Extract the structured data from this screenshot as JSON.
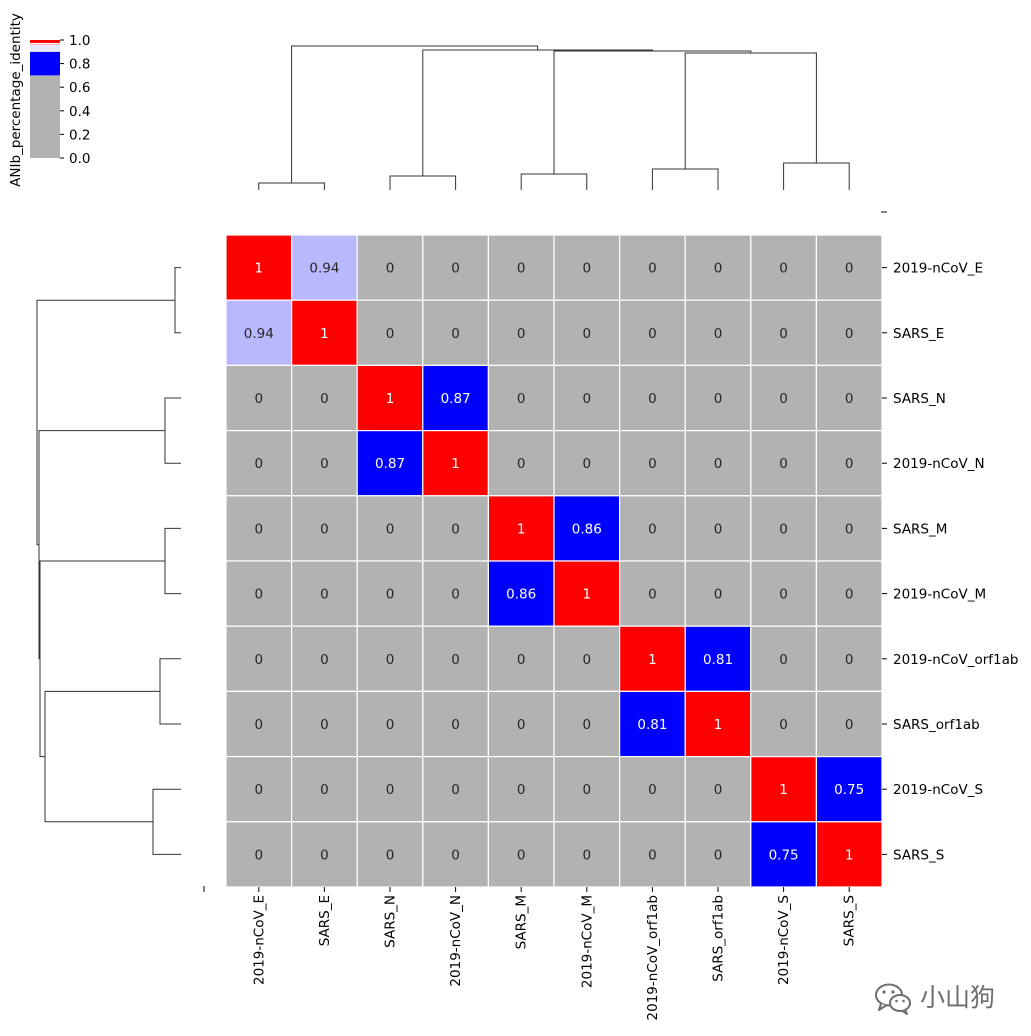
{
  "chart_data": {
    "type": "heatmap",
    "title": "",
    "xlabel": "",
    "ylabel": "",
    "colorbar": {
      "label": "ANIb_percentage_identity",
      "ticks": [
        "0.0",
        "0.2",
        "0.4",
        "0.6",
        "0.8",
        "1.0"
      ],
      "range": [
        0,
        1
      ]
    },
    "x_labels": [
      "2019-nCoV_E",
      "SARS_E",
      "SARS_N",
      "2019-nCoV_N",
      "SARS_M",
      "2019-nCoV_M",
      "2019-nCoV_orf1ab",
      "SARS_orf1ab",
      "2019-nCoV_S",
      "SARS_S"
    ],
    "y_labels": [
      "2019-nCoV_E",
      "SARS_E",
      "SARS_N",
      "2019-nCoV_N",
      "SARS_M",
      "2019-nCoV_M",
      "2019-nCoV_orf1ab",
      "SARS_orf1ab",
      "2019-nCoV_S",
      "SARS_S"
    ],
    "values": [
      [
        1,
        0.94,
        0,
        0,
        0,
        0,
        0,
        0,
        0,
        0
      ],
      [
        0.94,
        1,
        0,
        0,
        0,
        0,
        0,
        0,
        0,
        0
      ],
      [
        0,
        0,
        1,
        0.87,
        0,
        0,
        0,
        0,
        0,
        0
      ],
      [
        0,
        0,
        0.87,
        1,
        0,
        0,
        0,
        0,
        0,
        0
      ],
      [
        0,
        0,
        0,
        0,
        1,
        0.86,
        0,
        0,
        0,
        0
      ],
      [
        0,
        0,
        0,
        0,
        0.86,
        1,
        0,
        0,
        0,
        0
      ],
      [
        0,
        0,
        0,
        0,
        0,
        0,
        1,
        0.81,
        0,
        0
      ],
      [
        0,
        0,
        0,
        0,
        0,
        0,
        0.81,
        1,
        0,
        0
      ],
      [
        0,
        0,
        0,
        0,
        0,
        0,
        0,
        0,
        1,
        0.75
      ],
      [
        0,
        0,
        0,
        0,
        0,
        0,
        0,
        0,
        0.75,
        1
      ]
    ],
    "cell_labels": [
      [
        "1",
        "0.94",
        "0",
        "0",
        "0",
        "0",
        "0",
        "0",
        "0",
        "0"
      ],
      [
        "0.94",
        "1",
        "0",
        "0",
        "0",
        "0",
        "0",
        "0",
        "0",
        "0"
      ],
      [
        "0",
        "0",
        "1",
        "0.87",
        "0",
        "0",
        "0",
        "0",
        "0",
        "0"
      ],
      [
        "0",
        "0",
        "0.87",
        "1",
        "0",
        "0",
        "0",
        "0",
        "0",
        "0"
      ],
      [
        "0",
        "0",
        "0",
        "0",
        "1",
        "0.86",
        "0",
        "0",
        "0",
        "0"
      ],
      [
        "0",
        "0",
        "0",
        "0",
        "0.86",
        "1",
        "0",
        "0",
        "0",
        "0"
      ],
      [
        "0",
        "0",
        "0",
        "0",
        "0",
        "0",
        "1",
        "0.81",
        "0",
        "0"
      ],
      [
        "0",
        "0",
        "0",
        "0",
        "0",
        "0",
        "0.81",
        "1",
        "0",
        "0"
      ],
      [
        "0",
        "0",
        "0",
        "0",
        "0",
        "0",
        "0",
        "0",
        "1",
        "0.75"
      ],
      [
        "0",
        "0",
        "0",
        "0",
        "0",
        "0",
        "0",
        "0",
        "0.75",
        "1"
      ]
    ],
    "dendrogram_merges": [
      [
        0,
        1
      ],
      [
        2,
        3
      ],
      [
        4,
        5
      ],
      [
        6,
        7
      ],
      [
        8,
        9
      ],
      [
        6,
        7,
        8,
        9
      ],
      [
        4,
        5,
        6,
        7,
        8,
        9
      ],
      [
        2,
        3,
        4,
        5,
        6,
        7,
        8,
        9
      ],
      [
        0,
        1,
        2,
        3,
        4,
        5,
        6,
        7,
        8,
        9
      ]
    ],
    "colors": {
      "identity": "#ff0000",
      "high": "#0000ff",
      "very_high": "#b8b8ff",
      "low": "#b2b2b2",
      "grid": "#ffffff",
      "text_dark": "#262626",
      "text_light": "#ffffff",
      "dendrogram": "#333333"
    },
    "grid": false,
    "legend": "top-left"
  },
  "watermark": {
    "text": "小山狗",
    "icon": "wechat-icon"
  }
}
